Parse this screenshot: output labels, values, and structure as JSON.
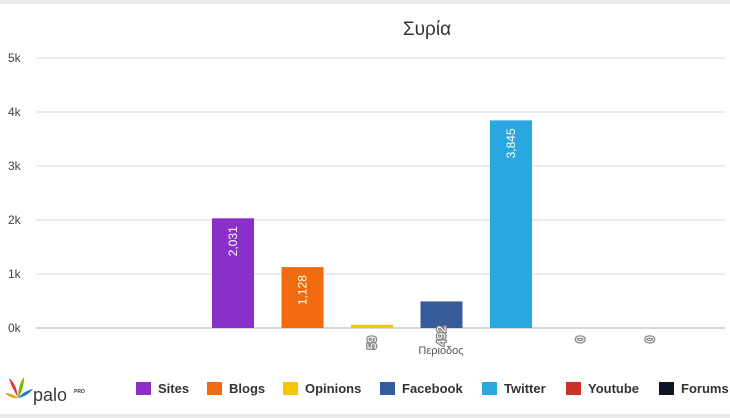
{
  "chart_data": {
    "type": "bar",
    "title": "Συρία",
    "xlabel": "Περιοδος",
    "ylabel": "",
    "ylim": [
      0,
      5000
    ],
    "yticks": [
      {
        "value": 0,
        "label": "0k"
      },
      {
        "value": 1000,
        "label": "1k"
      },
      {
        "value": 2000,
        "label": "2k"
      },
      {
        "value": 3000,
        "label": "3k"
      },
      {
        "value": 4000,
        "label": "4k"
      },
      {
        "value": 5000,
        "label": "5k"
      }
    ],
    "grid": true,
    "legend_position": "bottom",
    "series": [
      {
        "name": "Sites",
        "value": 2031,
        "label": "2,031",
        "color": "#8b2fc9"
      },
      {
        "name": "Blogs",
        "value": 1128,
        "label": "1,128",
        "color": "#f26b0f"
      },
      {
        "name": "Opinions",
        "value": 59,
        "label": "59",
        "color": "#f2c600"
      },
      {
        "name": "Facebook",
        "value": 492,
        "label": "492",
        "color": "#355b9a"
      },
      {
        "name": "Twitter",
        "value": 3845,
        "label": "3,845",
        "color": "#29a8df"
      },
      {
        "name": "Youtube",
        "value": 0,
        "label": "0",
        "color": "#c8342b"
      },
      {
        "name": "Forums",
        "value": 0,
        "label": "0",
        "color": "#0f1522"
      }
    ]
  },
  "brand": {
    "name": "palo",
    "superscript": "PRO"
  }
}
